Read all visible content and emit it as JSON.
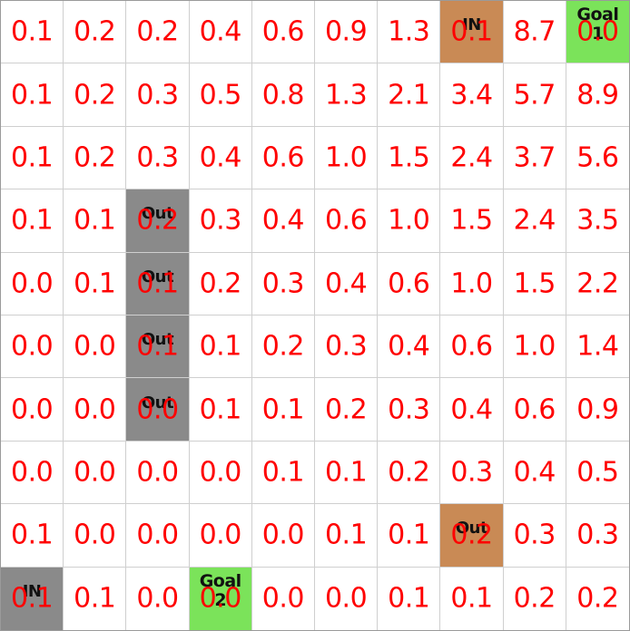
{
  "grid": {
    "rows": [
      [
        "0.1",
        "0.2",
        "0.2",
        "0.4",
        "0.6",
        "0.9",
        "1.3",
        "0.1",
        "8.7",
        "0.0"
      ],
      [
        "0.1",
        "0.2",
        "0.3",
        "0.5",
        "0.8",
        "1.3",
        "2.1",
        "3.4",
        "5.7",
        "8.9"
      ],
      [
        "0.1",
        "0.2",
        "0.3",
        "0.4",
        "0.6",
        "1.0",
        "1.5",
        "2.4",
        "3.7",
        "5.6"
      ],
      [
        "0.1",
        "0.1",
        "0.2",
        "0.3",
        "0.4",
        "0.6",
        "1.0",
        "1.5",
        "2.4",
        "3.5"
      ],
      [
        "0.0",
        "0.1",
        "0.1",
        "0.2",
        "0.3",
        "0.4",
        "0.6",
        "1.0",
        "1.5",
        "2.2"
      ],
      [
        "0.0",
        "0.0",
        "0.1",
        "0.1",
        "0.2",
        "0.3",
        "0.4",
        "0.6",
        "1.0",
        "1.4"
      ],
      [
        "0.0",
        "0.0",
        "0.0",
        "0.1",
        "0.1",
        "0.2",
        "0.3",
        "0.4",
        "0.6",
        "0.9"
      ],
      [
        "0.0",
        "0.0",
        "0.0",
        "0.0",
        "0.1",
        "0.1",
        "0.2",
        "0.3",
        "0.4",
        "0.5"
      ],
      [
        "0.1",
        "0.0",
        "0.0",
        "0.0",
        "0.0",
        "0.1",
        "0.1",
        "0.2",
        "0.3",
        "0.3"
      ],
      [
        "0.1",
        "0.1",
        "0.0",
        "0.0",
        "0.0",
        "0.0",
        "0.1",
        "0.1",
        "0.2",
        "0.2"
      ]
    ],
    "special_cells": [
      {
        "row": 0,
        "col": 7,
        "label": "IN",
        "kind": "in-brown",
        "color": "#c98a55"
      },
      {
        "row": 0,
        "col": 9,
        "label": "Goal\n1",
        "kind": "goal",
        "color": "#7be35a"
      },
      {
        "row": 3,
        "col": 2,
        "label": "Out",
        "kind": "out-gray",
        "color": "#8a8a8a"
      },
      {
        "row": 4,
        "col": 2,
        "label": "Out",
        "kind": "out-gray",
        "color": "#8a8a8a"
      },
      {
        "row": 5,
        "col": 2,
        "label": "Out",
        "kind": "out-gray",
        "color": "#8a8a8a"
      },
      {
        "row": 6,
        "col": 2,
        "label": "Out",
        "kind": "out-gray",
        "color": "#8a8a8a"
      },
      {
        "row": 8,
        "col": 7,
        "label": "Out",
        "kind": "out-brown",
        "color": "#c98a55"
      },
      {
        "row": 9,
        "col": 0,
        "label": "IN",
        "kind": "in-gray",
        "color": "#8a8a8a"
      },
      {
        "row": 9,
        "col": 3,
        "label": "Goal\n2",
        "kind": "goal",
        "color": "#7be35a"
      }
    ],
    "value_color": "#ff0000"
  }
}
